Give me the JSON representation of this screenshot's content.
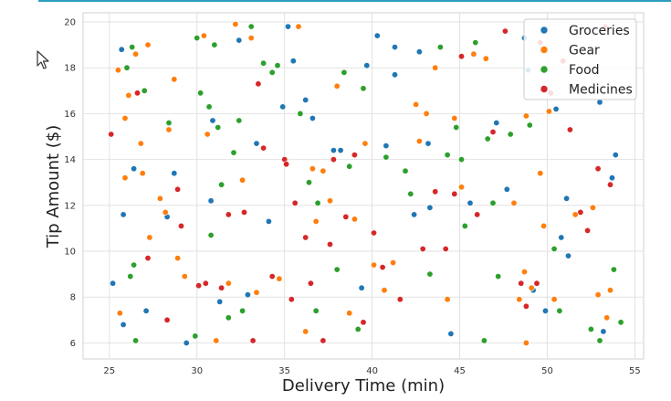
{
  "colors": {
    "Groceries": "#1f77b4",
    "Gear": "#ff7f0e",
    "Food": "#2ca02c",
    "Medicines": "#d62728",
    "accent": "#2a9dc0"
  },
  "chart_data": {
    "type": "scatter",
    "title": "",
    "xlabel": "Delivery Time (min)",
    "ylabel": "Tip Amount ($)",
    "xlim": [
      23.5,
      55.5
    ],
    "ylim": [
      5.3,
      20.4
    ],
    "xticks": [
      25,
      30,
      35,
      40,
      45,
      50,
      55
    ],
    "yticks": [
      6,
      8,
      10,
      12,
      14,
      16,
      18,
      20
    ],
    "grid": true,
    "legend_position": "top-right",
    "series": [
      {
        "name": "Groceries",
        "points": [
          [
            25.2,
            8.6
          ],
          [
            25.7,
            18.8
          ],
          [
            25.8,
            11.6
          ],
          [
            25.8,
            6.8
          ],
          [
            26.4,
            13.6
          ],
          [
            27.1,
            7.4
          ],
          [
            28.3,
            11.5
          ],
          [
            28.7,
            13.4
          ],
          [
            29.4,
            6.0
          ],
          [
            30.8,
            12.2
          ],
          [
            30.9,
            15.7
          ],
          [
            31.3,
            7.8
          ],
          [
            32.4,
            19.2
          ],
          [
            32.9,
            8.1
          ],
          [
            33.4,
            14.7
          ],
          [
            34.1,
            11.3
          ],
          [
            34.9,
            16.3
          ],
          [
            35.2,
            19.8
          ],
          [
            35.5,
            18.3
          ],
          [
            36.2,
            16.6
          ],
          [
            36.6,
            15.8
          ],
          [
            37.8,
            14.4
          ],
          [
            38.2,
            14.4
          ],
          [
            39.4,
            8.4
          ],
          [
            39.7,
            18.1
          ],
          [
            40.3,
            19.4
          ],
          [
            40.8,
            14.6
          ],
          [
            41.3,
            17.7
          ],
          [
            41.3,
            18.9
          ],
          [
            42.4,
            11.6
          ],
          [
            42.7,
            18.7
          ],
          [
            43.2,
            14.7
          ],
          [
            43.3,
            11.9
          ],
          [
            44.5,
            6.4
          ],
          [
            45.6,
            12.1
          ],
          [
            47.1,
            15.6
          ],
          [
            47.7,
            12.7
          ],
          [
            48.7,
            19.3
          ],
          [
            48.9,
            17.9
          ],
          [
            49.2,
            8.3
          ],
          [
            49.9,
            7.4
          ],
          [
            50.5,
            16.2
          ],
          [
            50.8,
            10.6
          ],
          [
            51.1,
            12.3
          ],
          [
            51.2,
            9.8
          ],
          [
            53.0,
            16.5
          ],
          [
            53.2,
            6.5
          ],
          [
            53.7,
            13.2
          ],
          [
            53.9,
            14.2
          ]
        ]
      },
      {
        "name": "Gear",
        "points": [
          [
            25.5,
            17.9
          ],
          [
            25.6,
            7.3
          ],
          [
            25.9,
            13.2
          ],
          [
            25.9,
            15.8
          ],
          [
            26.1,
            16.8
          ],
          [
            26.5,
            18.6
          ],
          [
            26.8,
            14.7
          ],
          [
            26.9,
            13.4
          ],
          [
            27.2,
            19.0
          ],
          [
            27.3,
            10.6
          ],
          [
            27.9,
            12.3
          ],
          [
            28.2,
            11.7
          ],
          [
            28.4,
            15.3
          ],
          [
            28.7,
            17.5
          ],
          [
            28.9,
            9.7
          ],
          [
            29.3,
            8.9
          ],
          [
            30.4,
            19.4
          ],
          [
            30.6,
            15.1
          ],
          [
            31.1,
            6.1
          ],
          [
            31.8,
            8.6
          ],
          [
            32.2,
            19.9
          ],
          [
            32.6,
            13.1
          ],
          [
            33.1,
            19.3
          ],
          [
            33.4,
            8.2
          ],
          [
            34.7,
            8.8
          ],
          [
            35.8,
            19.8
          ],
          [
            36.2,
            6.5
          ],
          [
            36.6,
            13.6
          ],
          [
            36.8,
            11.3
          ],
          [
            37.2,
            13.5
          ],
          [
            37.6,
            12.2
          ],
          [
            38.0,
            17.2
          ],
          [
            38.7,
            7.3
          ],
          [
            39.0,
            11.4
          ],
          [
            39.6,
            14.7
          ],
          [
            40.1,
            9.4
          ],
          [
            40.7,
            8.3
          ],
          [
            41.2,
            9.5
          ],
          [
            42.5,
            16.4
          ],
          [
            42.7,
            14.8
          ],
          [
            43.1,
            16.0
          ],
          [
            43.6,
            18.0
          ],
          [
            44.3,
            7.9
          ],
          [
            44.7,
            15.8
          ],
          [
            45.1,
            12.8
          ],
          [
            45.8,
            18.6
          ],
          [
            46.5,
            18.4
          ],
          [
            48.1,
            12.1
          ],
          [
            48.8,
            15.9
          ],
          [
            48.4,
            7.9
          ],
          [
            48.7,
            9.1
          ],
          [
            48.8,
            6.0
          ],
          [
            49.1,
            8.4
          ],
          [
            49.6,
            13.4
          ],
          [
            49.8,
            11.1
          ],
          [
            50.1,
            16.1
          ],
          [
            50.4,
            7.9
          ],
          [
            51.6,
            11.6
          ],
          [
            52.6,
            11.9
          ],
          [
            52.9,
            8.1
          ],
          [
            53.4,
            7.1
          ],
          [
            53.6,
            8.3
          ]
        ]
      },
      {
        "name": "Food",
        "points": [
          [
            26.0,
            18.0
          ],
          [
            26.2,
            8.9
          ],
          [
            26.3,
            18.9
          ],
          [
            26.4,
            9.4
          ],
          [
            26.5,
            6.1
          ],
          [
            27.0,
            17.0
          ],
          [
            28.4,
            15.6
          ],
          [
            29.9,
            6.3
          ],
          [
            30.0,
            19.3
          ],
          [
            30.2,
            16.9
          ],
          [
            30.7,
            16.3
          ],
          [
            30.8,
            10.7
          ],
          [
            31.2,
            15.4
          ],
          [
            31.0,
            19.0
          ],
          [
            31.4,
            12.9
          ],
          [
            31.8,
            7.1
          ],
          [
            32.1,
            14.3
          ],
          [
            32.4,
            15.7
          ],
          [
            32.6,
            7.4
          ],
          [
            33.1,
            19.8
          ],
          [
            33.8,
            18.2
          ],
          [
            34.3,
            17.8
          ],
          [
            34.6,
            18.1
          ],
          [
            35.9,
            16.0
          ],
          [
            36.4,
            13.0
          ],
          [
            36.8,
            7.4
          ],
          [
            36.9,
            12.1
          ],
          [
            38.0,
            9.2
          ],
          [
            38.4,
            17.8
          ],
          [
            38.7,
            13.7
          ],
          [
            39.2,
            6.6
          ],
          [
            39.5,
            17.1
          ],
          [
            40.8,
            14.1
          ],
          [
            41.9,
            13.5
          ],
          [
            42.2,
            12.5
          ],
          [
            43.3,
            9.0
          ],
          [
            43.9,
            18.9
          ],
          [
            44.3,
            14.2
          ],
          [
            44.8,
            15.4
          ],
          [
            45.1,
            14.0
          ],
          [
            45.3,
            11.1
          ],
          [
            45.9,
            19.1
          ],
          [
            46.4,
            6.1
          ],
          [
            46.6,
            14.9
          ],
          [
            46.9,
            12.1
          ],
          [
            47.2,
            8.9
          ],
          [
            47.9,
            15.1
          ],
          [
            49.0,
            15.5
          ],
          [
            49.9,
            17.9
          ],
          [
            50.4,
            10.1
          ],
          [
            50.7,
            7.4
          ],
          [
            52.5,
            6.6
          ],
          [
            53.0,
            6.1
          ],
          [
            53.8,
            9.2
          ],
          [
            54.2,
            6.9
          ]
        ]
      },
      {
        "name": "Medicines",
        "points": [
          [
            25.1,
            15.1
          ],
          [
            26.6,
            16.9
          ],
          [
            27.2,
            9.7
          ],
          [
            28.3,
            7.0
          ],
          [
            28.9,
            12.7
          ],
          [
            29.1,
            11.1
          ],
          [
            30.1,
            8.5
          ],
          [
            30.5,
            8.6
          ],
          [
            31.4,
            8.4
          ],
          [
            31.8,
            11.6
          ],
          [
            32.7,
            11.7
          ],
          [
            33.2,
            6.1
          ],
          [
            33.5,
            17.3
          ],
          [
            33.8,
            14.5
          ],
          [
            34.3,
            8.9
          ],
          [
            35.0,
            14.0
          ],
          [
            35.1,
            13.8
          ],
          [
            35.4,
            7.9
          ],
          [
            35.6,
            12.1
          ],
          [
            36.2,
            10.6
          ],
          [
            36.5,
            8.6
          ],
          [
            37.2,
            6.1
          ],
          [
            37.6,
            10.3
          ],
          [
            37.8,
            14.0
          ],
          [
            38.5,
            11.5
          ],
          [
            39.0,
            14.2
          ],
          [
            39.5,
            6.9
          ],
          [
            40.1,
            10.8
          ],
          [
            40.6,
            9.3
          ],
          [
            41.6,
            7.9
          ],
          [
            42.9,
            10.1
          ],
          [
            43.6,
            12.6
          ],
          [
            44.2,
            10.1
          ],
          [
            44.7,
            12.5
          ],
          [
            45.1,
            18.5
          ],
          [
            46.0,
            11.6
          ],
          [
            46.9,
            15.2
          ],
          [
            47.6,
            19.6
          ],
          [
            48.5,
            8.6
          ],
          [
            48.8,
            7.6
          ],
          [
            49.4,
            8.6
          ],
          [
            49.6,
            19.1
          ],
          [
            50.2,
            16.9
          ],
          [
            50.9,
            18.3
          ],
          [
            51.3,
            15.3
          ],
          [
            51.9,
            11.7
          ],
          [
            52.3,
            10.9
          ],
          [
            52.9,
            13.6
          ],
          [
            53.6,
            12.9
          ],
          [
            53.3,
            19.8
          ]
        ]
      }
    ]
  }
}
